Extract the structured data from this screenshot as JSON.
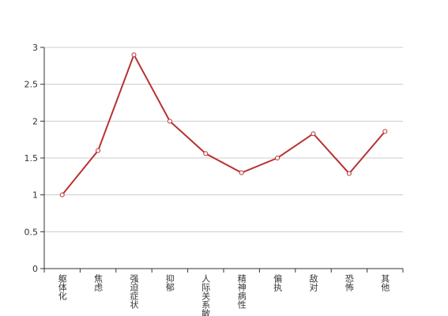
{
  "chart_data": {
    "type": "line",
    "categories": [
      "躯体化",
      "焦虑",
      "强迫症状",
      "抑郁",
      "人际关系敏感",
      "精神病性",
      "偏执",
      "敌对",
      "恐怖",
      "其他"
    ],
    "series": [
      {
        "color": "#b83232",
        "values": [
          1,
          1.6,
          2.9,
          2.0,
          1.56,
          1.3,
          1.5,
          1.83,
          1.29,
          1.86
        ]
      }
    ],
    "ylim": [
      0,
      3
    ],
    "yticks": [
      0,
      0.5,
      1,
      1.5,
      2,
      2.5,
      3
    ],
    "grid": true
  }
}
